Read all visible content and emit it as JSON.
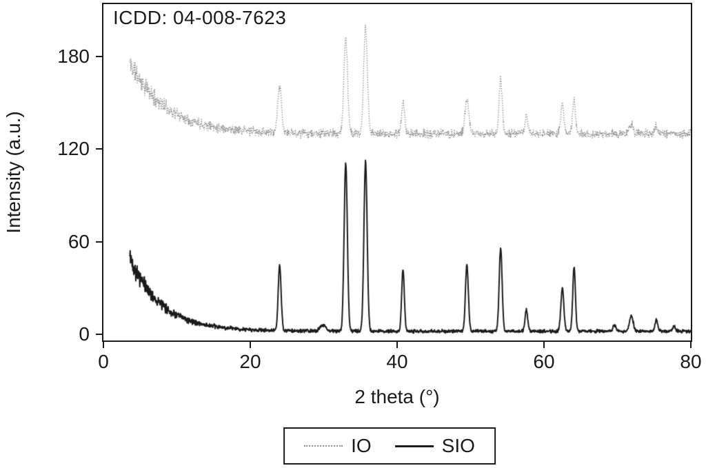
{
  "figure": {
    "annotation": "ICDD: 04-008-7623"
  },
  "chart_data": {
    "type": "line",
    "title": "",
    "annotation": "ICDD: 04-008-7623",
    "xlabel": "2 theta (°)",
    "ylabel": "Intensity (a.u.)",
    "xlim": [
      0,
      80
    ],
    "ylim": [
      -4,
      214
    ],
    "x_ticks": [
      0,
      20,
      40,
      60,
      80
    ],
    "y_ticks": [
      0,
      60,
      120,
      180
    ],
    "grid": false,
    "legend_position": "bottom-center",
    "peaks_format": [
      "two_theta_deg",
      "height_above_baseline",
      "sigma_deg"
    ],
    "series": [
      {
        "name": "IO",
        "line_style": "dotted",
        "color": "#8a8a8a",
        "line_width": 1.3,
        "baseline": 130,
        "low_angle_decay": {
          "start_x": 3.6,
          "amplitude": 46,
          "tau": 5.0
        },
        "noise": {
          "base": 3.4,
          "scale_with_decay": 0.13,
          "seed": 11
        },
        "peaks": [
          [
            24.0,
            30,
            0.25
          ],
          [
            33.0,
            62,
            0.25
          ],
          [
            35.7,
            69,
            0.25
          ],
          [
            40.8,
            21,
            0.2
          ],
          [
            49.5,
            23,
            0.25
          ],
          [
            54.1,
            35,
            0.22
          ],
          [
            57.6,
            12,
            0.2
          ],
          [
            62.5,
            19,
            0.22
          ],
          [
            64.1,
            22,
            0.2
          ],
          [
            71.9,
            6,
            0.25
          ],
          [
            75.3,
            5,
            0.2
          ]
        ]
      },
      {
        "name": "SIO",
        "line_style": "solid",
        "color": "#1a1a1a",
        "line_width": 2,
        "baseline": 2,
        "low_angle_decay": {
          "start_x": 3.6,
          "amplitude": 48,
          "tau": 4.2
        },
        "noise": {
          "base": 1.3,
          "scale_with_decay": 0.16,
          "seed": 42
        },
        "peaks": [
          [
            24.0,
            42,
            0.2
          ],
          [
            29.9,
            4,
            0.4
          ],
          [
            33.0,
            109,
            0.22
          ],
          [
            35.7,
            110,
            0.22
          ],
          [
            40.8,
            40,
            0.18
          ],
          [
            49.5,
            43,
            0.2
          ],
          [
            54.1,
            54,
            0.2
          ],
          [
            57.6,
            14,
            0.18
          ],
          [
            62.5,
            28,
            0.2
          ],
          [
            64.1,
            42,
            0.18
          ],
          [
            69.6,
            4,
            0.2
          ],
          [
            71.9,
            10,
            0.25
          ],
          [
            75.3,
            7,
            0.2
          ],
          [
            77.7,
            3,
            0.2
          ]
        ]
      }
    ]
  },
  "legend": {
    "items": [
      {
        "label": "IO",
        "style": "dotted"
      },
      {
        "label": "SIO",
        "style": "solid"
      }
    ]
  }
}
